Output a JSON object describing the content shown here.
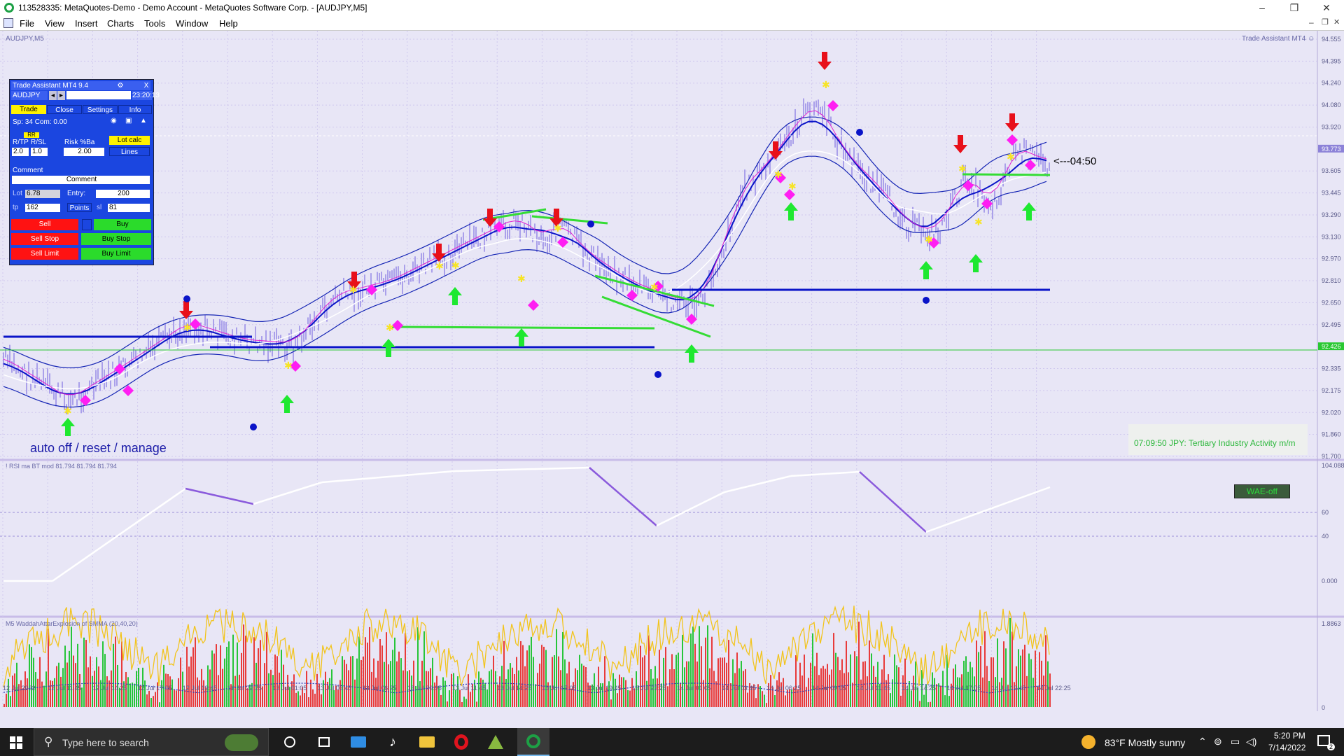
{
  "window": {
    "title": "113528335: MetaQuotes-Demo - Demo Account - MetaQuotes Software Corp. - [AUDJPY,M5]",
    "minimize": "–",
    "maximize": "❐",
    "close": "✕"
  },
  "menu": [
    "File",
    "View",
    "Insert",
    "Charts",
    "Tools",
    "Window",
    "Help"
  ],
  "chart": {
    "symbol_label": "AUDJPY,M5",
    "ea_label": "Trade Assistant MT4 ☺",
    "countdown": "<---04:50",
    "status_left": "auto off / reset / manage",
    "news": "07:09:50   JPY: Tertiary Industry Activity m/m",
    "rsi_label": "! RSI ma BT mod 81.794 81.794 81.794",
    "wae_label": "M5 WaddahAttarExplosion of SMMA (20,40,20)",
    "wae_button": "WAE-off",
    "price_ticks": [
      "94.555",
      "94.395",
      "94.240",
      "94.080",
      "93.920",
      "93.773",
      "93.605",
      "93.445",
      "93.290",
      "93.130",
      "92.970",
      "92.810",
      "92.650",
      "92.495",
      "92.426",
      "92.335",
      "92.175",
      "92.020",
      "91.860",
      "91.700"
    ],
    "price_current": "93.773",
    "price_line": "92.426",
    "rsi_ticks": [
      "104.088",
      "60",
      "40",
      "0.000"
    ],
    "rsi_bottom_tick": "0.000",
    "wae_ticks": [
      "1.8863",
      "0"
    ],
    "time_ticks": [
      "12 Jul 2022",
      "12 Jul 11:45",
      "12 Jul 14:25",
      "12 Jul 17:05",
      "12 Jul 19:45",
      "12 Jul 22:25",
      "13 Jul 01:05",
      "13 Jul 03:45",
      "13 Jul 06:25",
      "13 Jul 09:05",
      "13 Jul 11:45",
      "13 Jul 14:25",
      "13 Jul 17:05",
      "13 Jul 19:45",
      "13 Jul 22:25",
      "14 Jul 01:05",
      "14 Jul 03:45",
      "14 Jul 06:25",
      "14 Jul 09:05",
      "14 Jul 11:45",
      "14 Jul 14:25",
      "14 Jul 17:05",
      "14 Jul 19:45",
      "14 Jul 22:25"
    ]
  },
  "trade_assistant": {
    "title": "Trade Assistant MT4 9.4",
    "close": "X",
    "symbol": "AUDJPY",
    "time": "23:20:13",
    "tabs": [
      "Trade",
      "Close",
      "Settings",
      "Info"
    ],
    "spread": "Sp: 34  Com: 0.00",
    "rr_label": "RR",
    "rtp_label": "R/TP",
    "rsl_label": "R/SL",
    "risk_label": "Risk %Ba",
    "rtp_value": "2.0",
    "rsl_value": "1.0",
    "risk_value": "2.00",
    "lot_calc": "Lot calc",
    "lines": "Lines",
    "comment_label": "Comment",
    "comment_value": "Comment",
    "lot_label": "Lot",
    "lot_value": "6.78",
    "entry_label": "Entry:",
    "entry_value": "200",
    "tp_label": "tp",
    "tp_value": "162",
    "points": "Points",
    "sl_label": "sl",
    "sl_value": "81",
    "sell": "Sell",
    "buy": "Buy",
    "sell_stop": "Sell Stop",
    "buy_stop": "Buy Stop",
    "sell_limit": "Sell Limit",
    "buy_limit": "Buy Limit"
  },
  "taskbar": {
    "search_placeholder": "Type here to search",
    "weather": "83°F  Mostly sunny",
    "time": "5:20 PM",
    "date": "7/14/2022",
    "notifications": "2"
  },
  "colors": {
    "chart_bg": "#e8e6f6",
    "buy_arrow": "#1ee830",
    "sell_arrow": "#e8101a",
    "level_line": "#0a14c8",
    "signal_diamond": "#ff1ef2",
    "price_candle": "#9b8ee8",
    "rsi_line_up": "#ffffff",
    "rsi_line_down": "#8a5adc",
    "wae_up": "#27c53a",
    "wae_down": "#e83b3b",
    "wae_explosion": "#f2c41c"
  }
}
